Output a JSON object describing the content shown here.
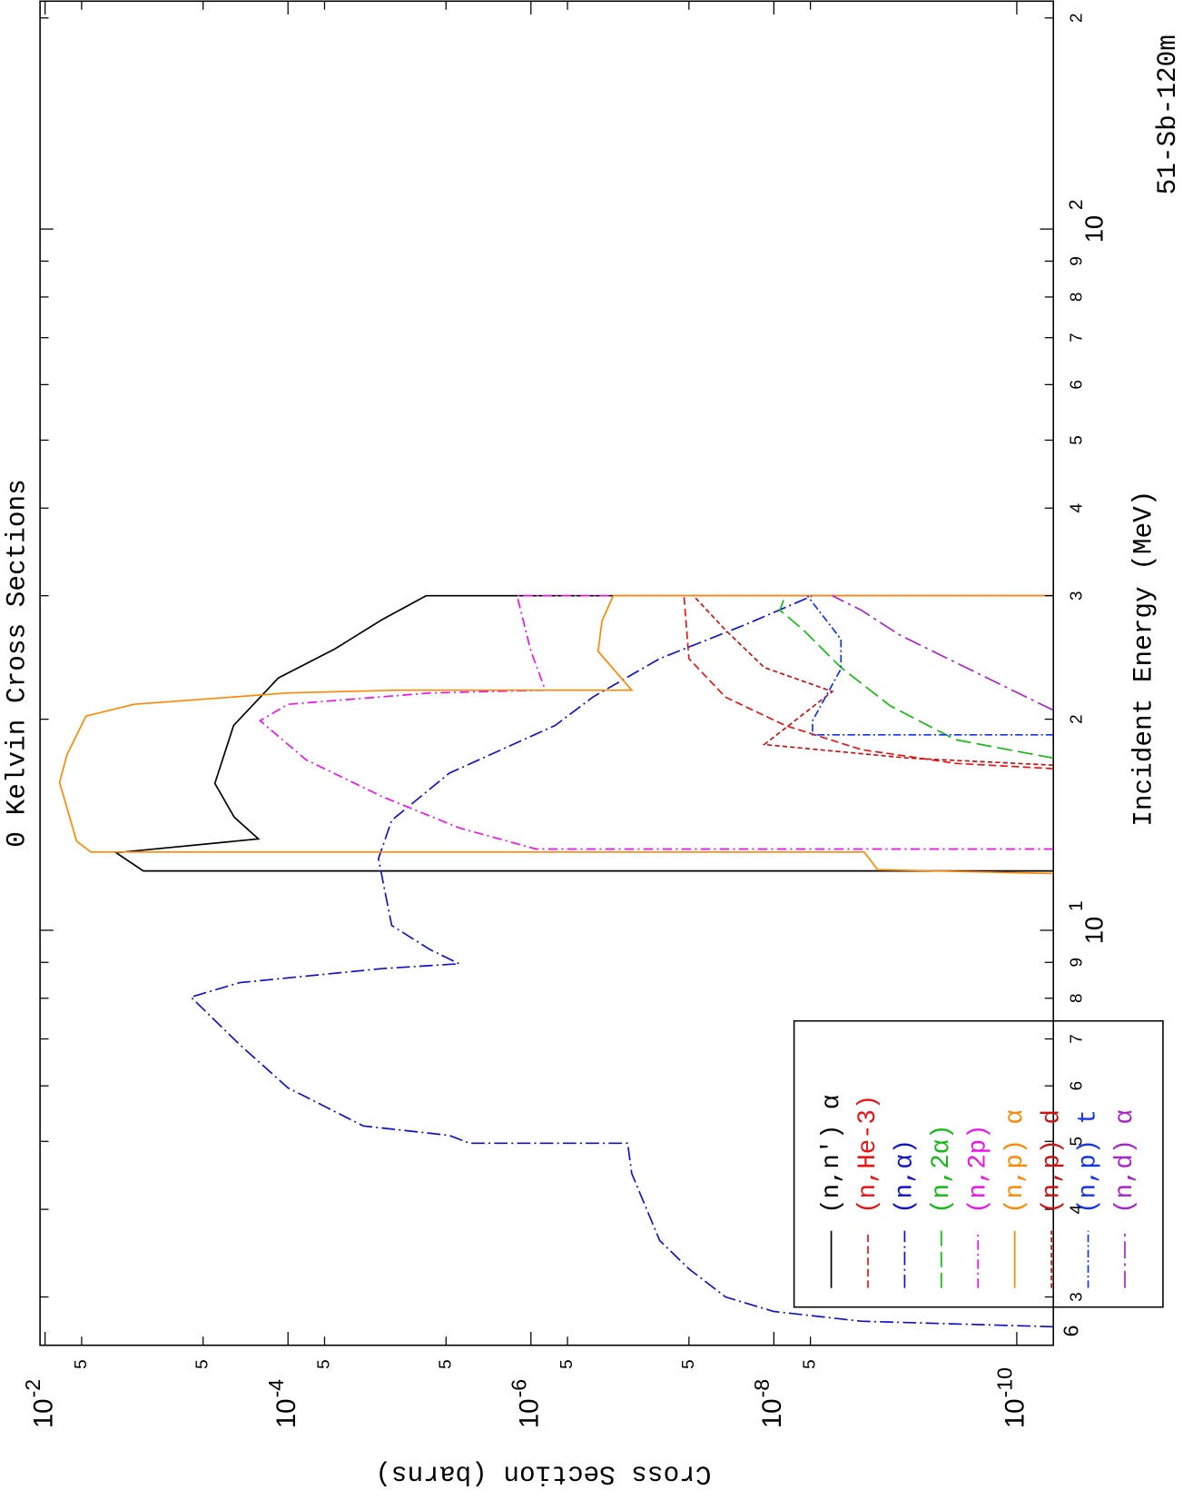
{
  "chart_data": {
    "type": "line",
    "title": "0 Kelvin Cross Sections",
    "x_label": "Incident Energy (MeV)",
    "y_label": "Cross Section (barns)",
    "annotations": [
      "51-Sb-120m",
      "6"
    ],
    "log_x": true,
    "log_y": true,
    "xlim": [
      2.56,
      212
    ],
    "ylim": [
      0.011,
      5e-11
    ],
    "xticks": [
      3,
      4,
      5,
      6,
      7,
      8,
      9,
      {
        "value": 10,
        "label": "10",
        "exp": "1"
      },
      {
        "value": 20,
        "label": "2"
      },
      {
        "value": 30,
        "label": "3"
      },
      {
        "value": 40,
        "label": "4"
      },
      {
        "value": 50,
        "label": "5"
      },
      {
        "value": 60,
        "label": "6"
      },
      {
        "value": 70,
        "label": "7"
      },
      {
        "value": 80,
        "label": "8"
      },
      {
        "value": 90,
        "label": "9"
      },
      {
        "value": 100,
        "label": "10",
        "exp": "2"
      },
      {
        "value": 200,
        "label": "2"
      }
    ],
    "yticks": [
      {
        "value": 0.01,
        "label": "10",
        "exp": "-2"
      },
      {
        "value": 0.005,
        "label": "5"
      },
      {
        "value": 0.0005,
        "label": "5"
      },
      {
        "value": 0.0001,
        "label": "10",
        "exp": "-4"
      },
      {
        "value": 5e-05,
        "label": "5"
      },
      {
        "value": 5e-06,
        "label": "5"
      },
      {
        "value": 1e-06,
        "label": "10",
        "exp": "-6"
      },
      {
        "value": 5e-07,
        "label": "5"
      },
      {
        "value": 5e-08,
        "label": "5"
      },
      {
        "value": 1e-08,
        "label": "10",
        "exp": "-8"
      },
      {
        "value": 5e-09,
        "label": "5"
      },
      {
        "value": 1e-10,
        "label": "10",
        "exp": "-10"
      }
    ],
    "legend": "lower left",
    "series": [
      {
        "name": "(n,n') α",
        "color": "#000000",
        "dash": "none",
        "x": [
          12.15,
          12.15,
          12.9,
          13.5,
          14.5,
          16.2,
          19.6,
          22.9,
          25.2,
          27.7,
          30,
          30
        ],
        "values": [
          5e-11,
          0.00155,
          0.0026,
          0.000175,
          0.000277,
          0.0004,
          0.00028,
          0.00012,
          4.1e-05,
          1.7e-05,
          7.3e-06,
          5e-11
        ]
      },
      {
        "name": "(n,He-3)",
        "color": "#ee1111",
        "dash": "8,4",
        "x": [
          17.0,
          17.3,
          18.1,
          19.6,
          21.5,
          24.4,
          30
        ],
        "values": [
          5e-11,
          3.2e-10,
          1.9e-09,
          8.1e-09,
          2.5e-08,
          5e-08,
          5.5e-08
        ]
      },
      {
        "name": "(n,α)",
        "color": "#1111cc",
        "dash": "14,4,2,4",
        "x": [
          2.72,
          2.77,
          2.86,
          3.0,
          3.29,
          3.61,
          4.5,
          4.97,
          4.97,
          5.1,
          5.26,
          5.96,
          6.87,
          8.03,
          8.42,
          8.82,
          8.96,
          9.39,
          10.16,
          12.65,
          14.35,
          16.75,
          19.6,
          21.5,
          24.4,
          27.3,
          30
        ],
        "values": [
          5e-11,
          1.9e-09,
          1e-08,
          2.5e-08,
          5e-08,
          8.7e-08,
          1.48e-07,
          1.6e-07,
          3.2e-06,
          4.7e-06,
          2.4e-05,
          0.0001,
          0.00025,
          0.00063,
          0.00025,
          1.66e-05,
          3.9e-06,
          6.8e-06,
          1.4e-05,
          1.8e-05,
          1.4e-05,
          4.7e-06,
          6.3e-07,
          3.1e-07,
          8.7e-08,
          1.7e-08,
          4.8e-09
        ]
      },
      {
        "name": "(n,2α)",
        "color": "#11bb11",
        "dash": "16,6",
        "x": [
          17.6,
          18.7,
          20.9,
          23.7,
          26.8,
          28.6,
          30
        ],
        "values": [
          5e-11,
          3.2e-10,
          1.1e-09,
          2.8e-09,
          5.7e-09,
          8.9e-09,
          8.1e-09
        ]
      },
      {
        "name": "(n,2p)",
        "color": "#ee11ee",
        "dash": "10,4,2,4",
        "x": [
          13.06,
          13.06,
          14.0,
          15.5,
          17.5,
          19.9,
          21.0,
          21.8,
          22.0,
          25.0,
          30,
          30
        ],
        "values": [
          5e-11,
          9.1e-07,
          3.9e-06,
          1.66e-05,
          7.1e-05,
          0.00017,
          0.0001,
          6.8e-06,
          7.6e-07,
          1e-06,
          1.3e-06,
          5e-11
        ]
      },
      {
        "name": "(n,p) α",
        "color": "#ff8800",
        "dash": "none",
        "x": [
          12.05,
          12.2,
          12.93,
          12.93,
          13.4,
          16.25,
          17.8,
          20.2,
          21.0,
          21.8,
          22.0,
          22.0,
          25.0,
          27.6,
          30,
          30
        ],
        "values": [
          5e-11,
          1.4e-09,
          1.8e-09,
          0.0042,
          0.0055,
          0.0076,
          0.0066,
          0.0046,
          0.00186,
          0.0001,
          1.27e-05,
          1.48e-07,
          2.8e-07,
          2.6e-07,
          2.1e-07,
          5e-11
        ]
      },
      {
        "name": "(n,p) d",
        "color": "#cc1111",
        "dash": "5,3",
        "x": [
          17.2,
          17.6,
          18.4,
          21.9,
          23.7,
          26.8,
          30
        ],
        "values": [
          5e-11,
          7.8e-10,
          1.2e-08,
          3.3e-09,
          1.2e-08,
          2.5e-08,
          4.6e-08
        ]
      },
      {
        "name": "(n,p) t",
        "color": "#1133ee",
        "dash": "8,3,2,3",
        "x": [
          19.0,
          19.0,
          19.9,
          23.6,
          26.0,
          30
        ],
        "values": [
          5e-11,
          4.8e-09,
          4.8e-09,
          2.8e-09,
          2.8e-09,
          5.3e-09
        ]
      },
      {
        "name": "(n,d) α",
        "color": "#aa22cc",
        "dash": "18,5,3,5",
        "x": [
          20.6,
          22.6,
          24.4,
          26.4,
          28.6,
          30
        ],
        "values": [
          5e-11,
          1.5e-10,
          3.7e-10,
          9.3e-10,
          1.9e-09,
          3.3e-09
        ]
      }
    ]
  }
}
